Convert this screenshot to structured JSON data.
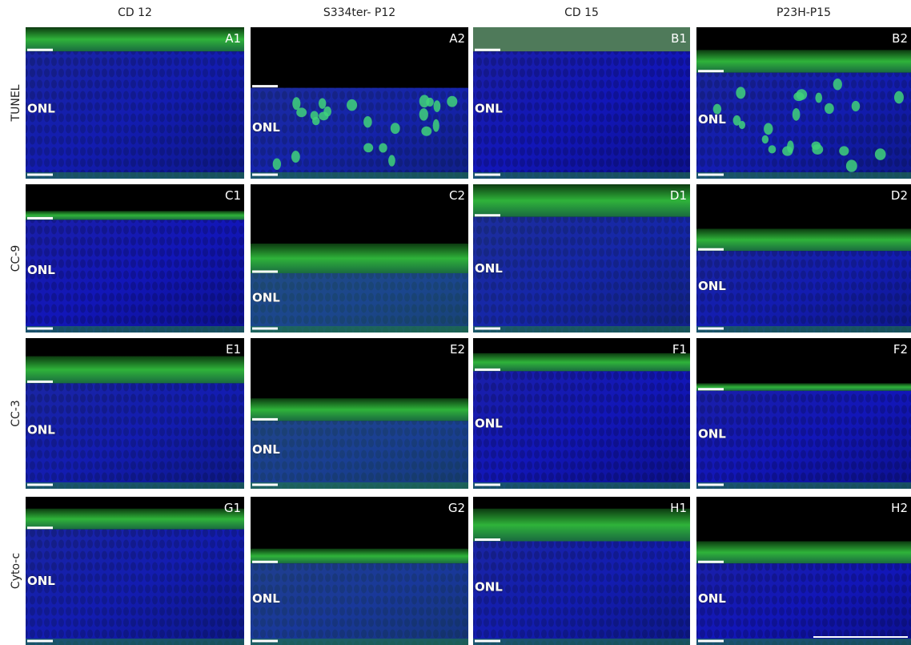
{
  "columns": [
    "CD 12",
    "S334ter- P12",
    "CD 15",
    "P23H-P15"
  ],
  "rows": [
    {
      "label": "TUNEL",
      "panels": [
        {
          "id": "A1",
          "layer": "ONL"
        },
        {
          "id": "A2",
          "layer": "ONL"
        },
        {
          "id": "B1",
          "layer": "ONL"
        },
        {
          "id": "B2",
          "layer": "ONL"
        }
      ]
    },
    {
      "label": "CC-9",
      "panels": [
        {
          "id": "C1",
          "layer": "ONL"
        },
        {
          "id": "C2",
          "layer": "ONL"
        },
        {
          "id": "D1",
          "layer": "ONL"
        },
        {
          "id": "D2",
          "layer": "ONL"
        }
      ]
    },
    {
      "label": "CC-3",
      "panels": [
        {
          "id": "E1",
          "layer": "ONL"
        },
        {
          "id": "E2",
          "layer": "ONL"
        },
        {
          "id": "F1",
          "layer": "ONL"
        },
        {
          "id": "F2",
          "layer": "ONL"
        }
      ]
    },
    {
      "label": "Cyto-c",
      "panels": [
        {
          "id": "G1",
          "layer": "ONL"
        },
        {
          "id": "G2",
          "layer": "ONL"
        },
        {
          "id": "H1",
          "layer": "ONL"
        },
        {
          "id": "H2",
          "layer": "ONL"
        }
      ]
    }
  ]
}
